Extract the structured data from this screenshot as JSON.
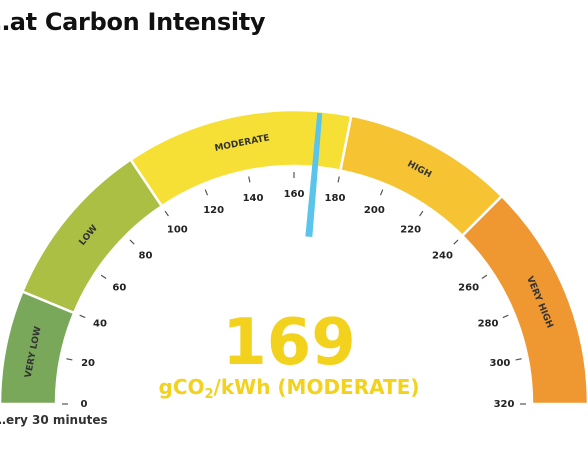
{
  "header": {
    "title": "…at Carbon Intensity"
  },
  "footer": {
    "note": "…ery 30 minutes"
  },
  "gauge": {
    "min": 0,
    "max": 320,
    "value": 169,
    "value_text": "169",
    "unit_prefix": "gCO",
    "unit_sub": "2",
    "unit_suffix": "/kWh (MODERATE)",
    "value_color": "#f2d21d",
    "needle_color": "#5bc4ea",
    "ticks": [
      0,
      20,
      40,
      60,
      80,
      100,
      120,
      140,
      160,
      180,
      200,
      220,
      240,
      260,
      280,
      300,
      320
    ],
    "bands": [
      {
        "label": "VERY LOW",
        "from": 0,
        "to": 40,
        "color": "#7aa85a"
      },
      {
        "label": "LOW",
        "from": 40,
        "to": 100,
        "color": "#aabf44"
      },
      {
        "label": "MODERATE",
        "from": 100,
        "to": 180,
        "color": "#f7e035"
      },
      {
        "label": "HIGH",
        "from": 180,
        "to": 240,
        "color": "#f6c432"
      },
      {
        "label": "VERY HIGH",
        "from": 240,
        "to": 320,
        "color": "#ef9731"
      }
    ]
  }
}
